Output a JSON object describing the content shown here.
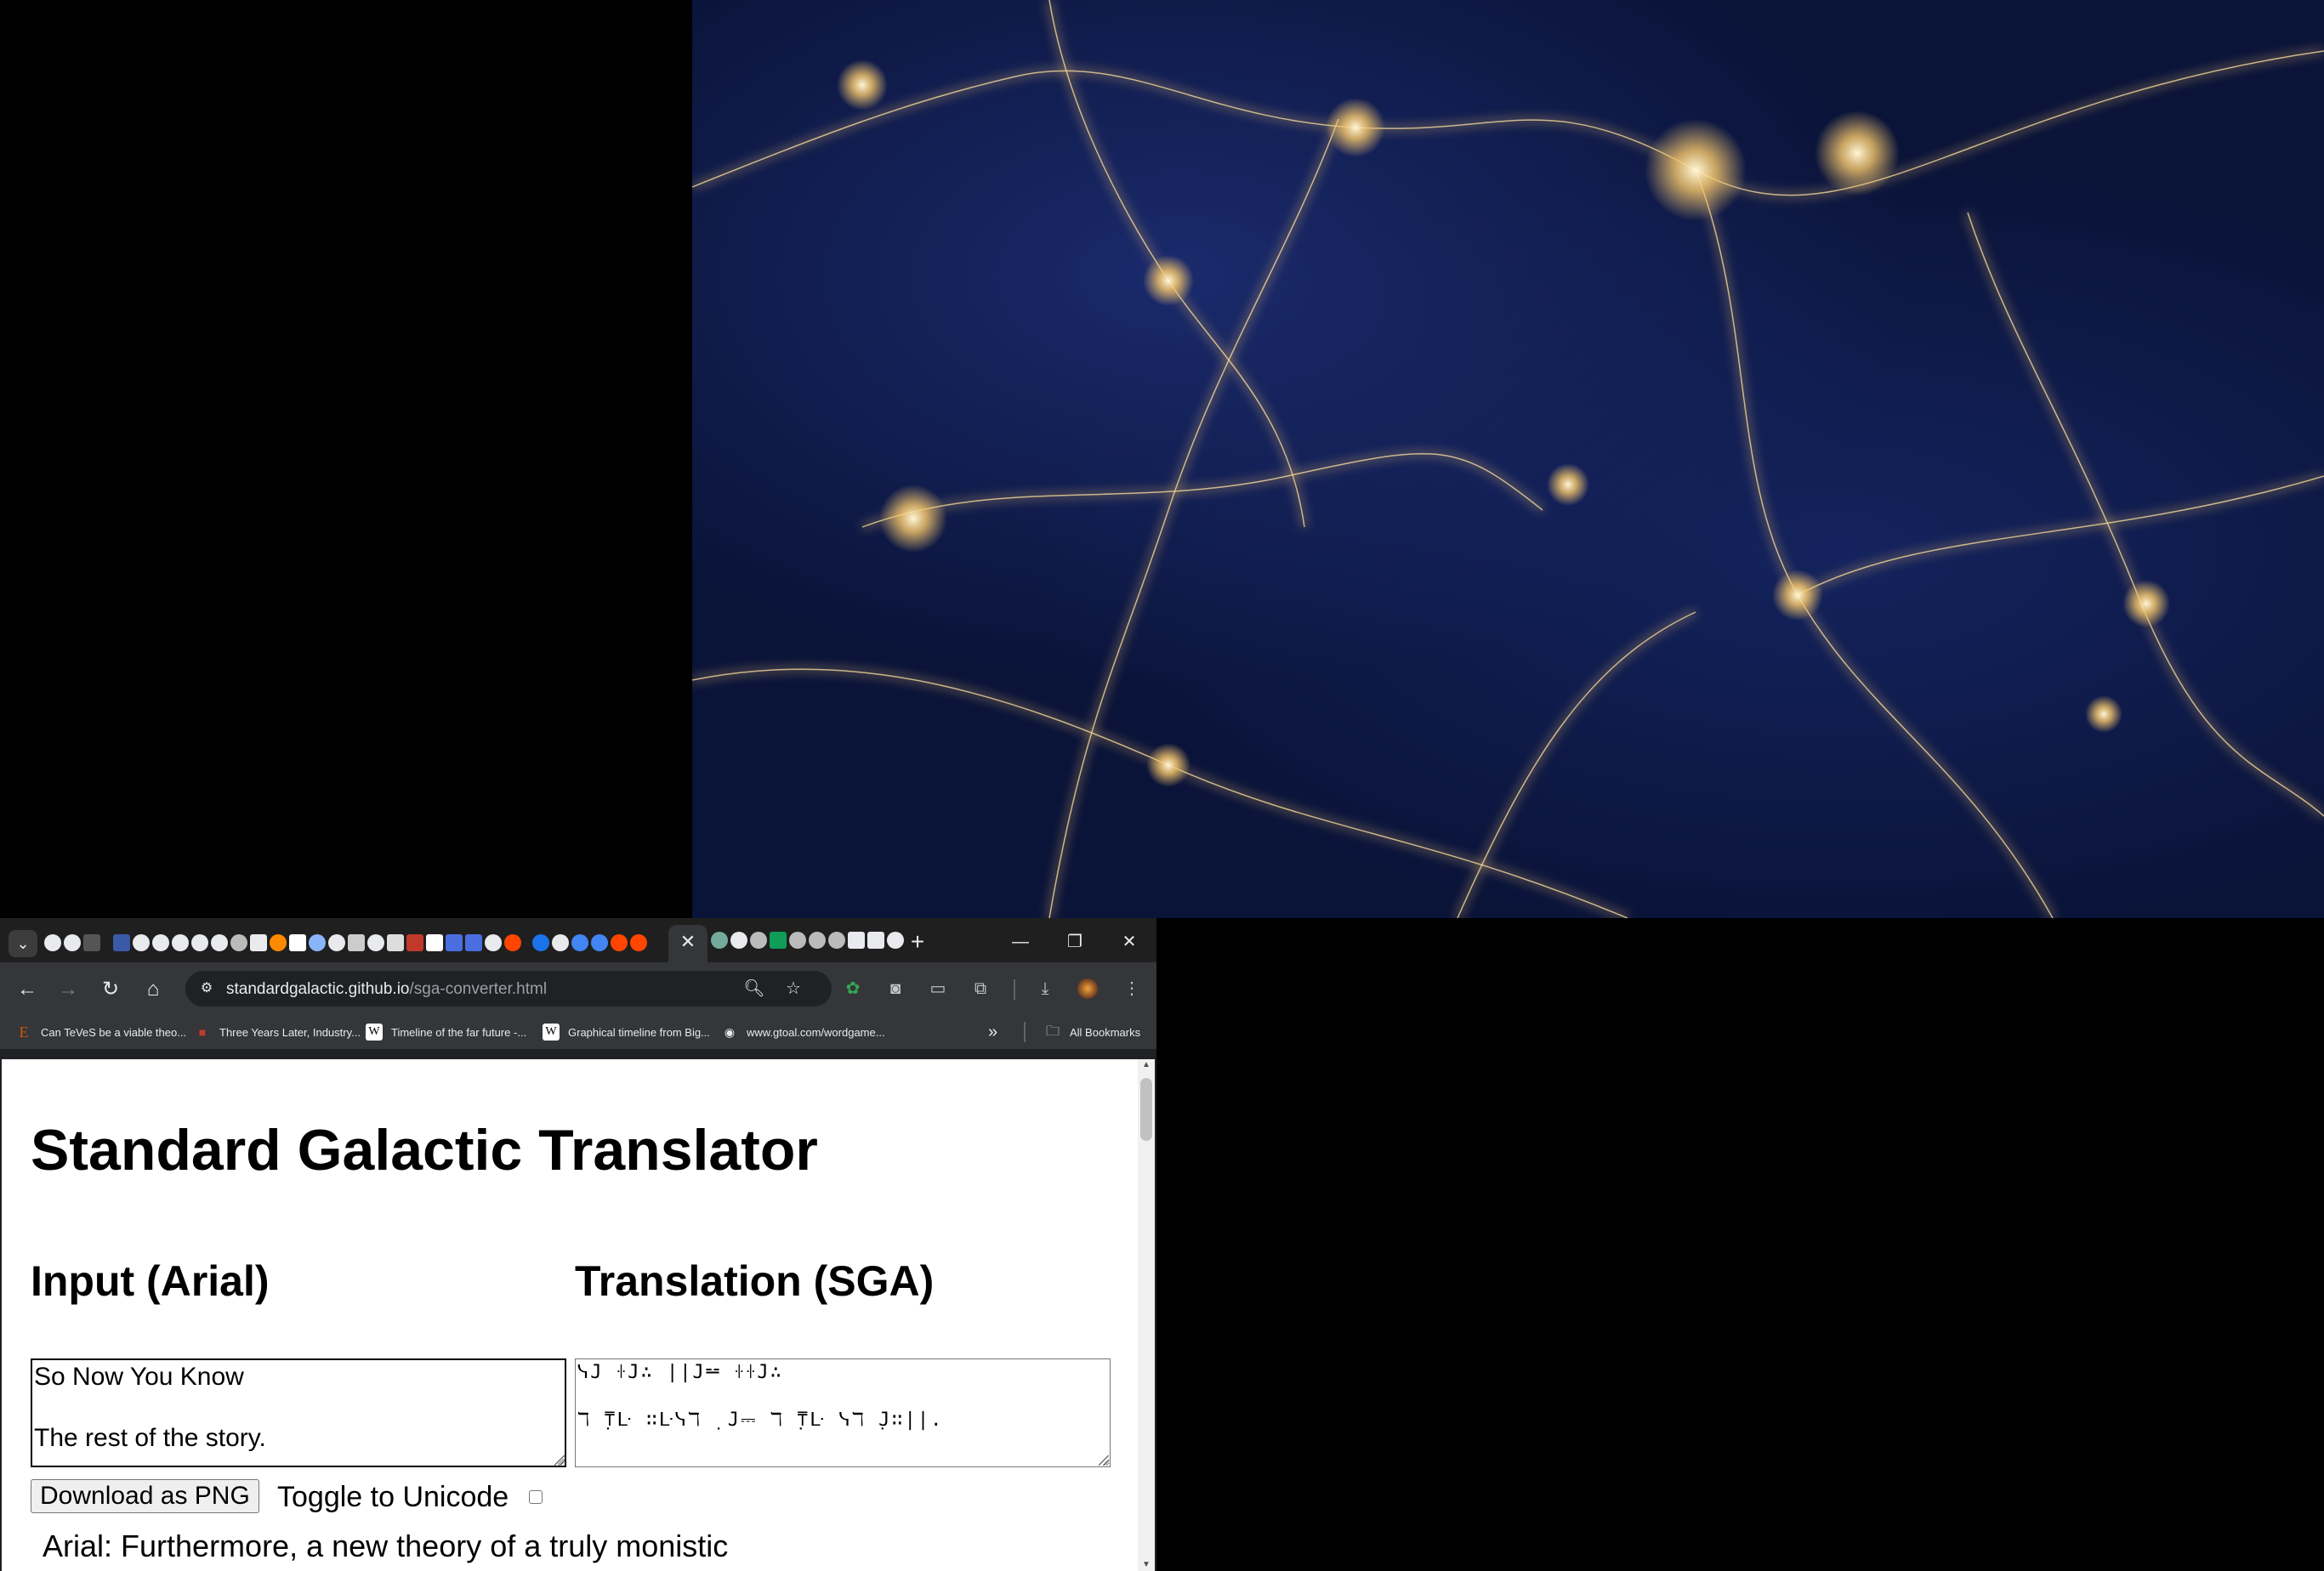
{
  "browser": {
    "active_tab_close": "✕",
    "new_tab": "+",
    "window_controls": {
      "minimize": "—",
      "restore": "❐",
      "close": "✕"
    },
    "url_host": "standardgalactic.github.io",
    "url_path": "/sga-converter.html"
  },
  "bookmarks": [
    {
      "label": "Can TeVeS be a viable theo...",
      "icon": "E",
      "icon_color": "#d35400"
    },
    {
      "label": "Three Years Later, Industry...",
      "icon": "■",
      "icon_color": "#c0392b"
    },
    {
      "label": "Timeline of the far future -...",
      "icon": "W",
      "icon_color": "#ffffff"
    },
    {
      "label": "Graphical timeline from Big...",
      "icon": "W",
      "icon_color": "#ffffff"
    },
    {
      "label": "www.gtoal.com/wordgame...",
      "icon": "◉",
      "icon_color": "#e8eaed"
    }
  ],
  "bookmarks_overflow": "»",
  "all_bookmarks": "All Bookmarks",
  "page": {
    "title": "Standard Galactic Translator",
    "input_heading": "Input (Arial)",
    "output_heading": "Translation (SGA)",
    "input_text": "So Now You Know\n\nThe rest of the story.",
    "output_text": "ᓭ𝙹 ꖌ𝙹∴ ||𝙹⚍ ꖌꖌ𝙹∴\n\nℸ ̣⍑ᒷ ∷ᒷᓭℸ ̣ 𝙹⎓ ℸ ̣⍑ᒷ ᓭℸ ̣𝙹∷||.",
    "download_button": "Download as PNG",
    "toggle_label": "Toggle to Unicode",
    "sample_line": "Arial: Furthermore, a new theory of a truly monistic"
  },
  "colors": {
    "tab_bar": "#1f1f1f",
    "toolbar": "#35363a",
    "omnibox": "#202124",
    "page_bg": "#ffffff"
  }
}
